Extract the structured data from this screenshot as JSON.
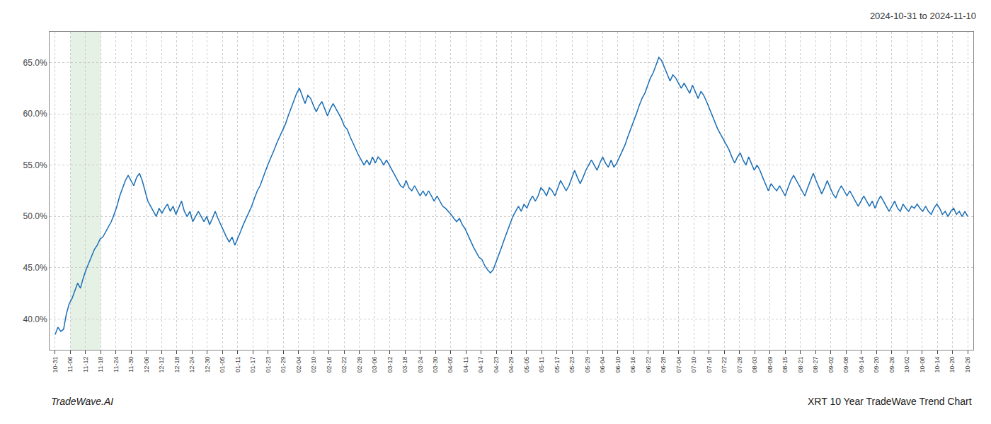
{
  "chart_data": {
    "type": "line",
    "title": "2024-10-31 to 2024-11-10",
    "annotations": [
      "TradeWave.AI",
      "XRT 10 Year TradeWave Trend Chart"
    ],
    "color": "#1a6eb5",
    "grid": true,
    "highlight": {
      "x0": "11-06",
      "x1": "11-18",
      "color": "#d6ead6"
    },
    "ylim": [
      37.0,
      68.0
    ],
    "yticks": [
      {
        "value": 40.0,
        "label": "40.0%"
      },
      {
        "value": 45.0,
        "label": "45.0%"
      },
      {
        "value": 50.0,
        "label": "50.0%"
      },
      {
        "value": 55.0,
        "label": "55.0%"
      },
      {
        "value": 60.0,
        "label": "60.0%"
      },
      {
        "value": 65.0,
        "label": "65.0%"
      }
    ],
    "xlim": [
      -2,
      327
    ],
    "xticks": [
      {
        "value": 0,
        "label": "10-31"
      },
      {
        "value": 5.4167,
        "label": "11-06"
      },
      {
        "value": 10.8333,
        "label": "11-12"
      },
      {
        "value": 16.25,
        "label": "11-18"
      },
      {
        "value": 21.6667,
        "label": "11-24"
      },
      {
        "value": 27.0833,
        "label": "11-30"
      },
      {
        "value": 32.5,
        "label": "12-06"
      },
      {
        "value": 37.9167,
        "label": "12-12"
      },
      {
        "value": 43.3333,
        "label": "12-18"
      },
      {
        "value": 48.75,
        "label": "12-24"
      },
      {
        "value": 54.1667,
        "label": "12-30"
      },
      {
        "value": 59.5833,
        "label": "01-05"
      },
      {
        "value": 65,
        "label": "01-11"
      },
      {
        "value": 70.4167,
        "label": "01-17"
      },
      {
        "value": 75.8333,
        "label": "01-23"
      },
      {
        "value": 81.25,
        "label": "01-29"
      },
      {
        "value": 86.6667,
        "label": "02-04"
      },
      {
        "value": 92.0833,
        "label": "02-10"
      },
      {
        "value": 97.5,
        "label": "02-16"
      },
      {
        "value": 102.9167,
        "label": "02-22"
      },
      {
        "value": 108.3333,
        "label": "02-28"
      },
      {
        "value": 113.75,
        "label": "03-06"
      },
      {
        "value": 119.1667,
        "label": "03-12"
      },
      {
        "value": 124.5833,
        "label": "03-18"
      },
      {
        "value": 130,
        "label": "03-24"
      },
      {
        "value": 135.4167,
        "label": "03-30"
      },
      {
        "value": 140.8333,
        "label": "04-05"
      },
      {
        "value": 146.25,
        "label": "04-11"
      },
      {
        "value": 151.6667,
        "label": "04-17"
      },
      {
        "value": 157.0833,
        "label": "04-23"
      },
      {
        "value": 162.5,
        "label": "04-29"
      },
      {
        "value": 167.9167,
        "label": "05-05"
      },
      {
        "value": 173.3333,
        "label": "05-11"
      },
      {
        "value": 178.75,
        "label": "05-17"
      },
      {
        "value": 184.1667,
        "label": "05-23"
      },
      {
        "value": 189.5833,
        "label": "05-29"
      },
      {
        "value": 195,
        "label": "06-04"
      },
      {
        "value": 200.4167,
        "label": "06-10"
      },
      {
        "value": 205.8333,
        "label": "06-16"
      },
      {
        "value": 211.25,
        "label": "06-22"
      },
      {
        "value": 216.6667,
        "label": "06-28"
      },
      {
        "value": 222.0833,
        "label": "07-04"
      },
      {
        "value": 227.5,
        "label": "07-10"
      },
      {
        "value": 232.9167,
        "label": "07-16"
      },
      {
        "value": 238.3333,
        "label": "07-22"
      },
      {
        "value": 243.75,
        "label": "07-28"
      },
      {
        "value": 249.1667,
        "label": "08-03"
      },
      {
        "value": 254.5833,
        "label": "08-09"
      },
      {
        "value": 260,
        "label": "08-15"
      },
      {
        "value": 265.4167,
        "label": "08-21"
      },
      {
        "value": 270.8333,
        "label": "08-27"
      },
      {
        "value": 276.25,
        "label": "09-02"
      },
      {
        "value": 281.6667,
        "label": "09-08"
      },
      {
        "value": 287.0833,
        "label": "09-14"
      },
      {
        "value": 292.5,
        "label": "09-20"
      },
      {
        "value": 297.9167,
        "label": "09-26"
      },
      {
        "value": 303.3333,
        "label": "10-02"
      },
      {
        "value": 308.75,
        "label": "10-08"
      },
      {
        "value": 314.1667,
        "label": "10-14"
      },
      {
        "value": 319.5833,
        "label": "10-20"
      },
      {
        "value": 325,
        "label": "10-26"
      }
    ],
    "values": [
      38.5,
      39.2,
      38.8,
      39.0,
      40.5,
      41.5,
      42.0,
      42.8,
      43.5,
      43.0,
      44.0,
      44.8,
      45.5,
      46.2,
      46.8,
      47.2,
      47.8,
      48.0,
      48.5,
      49.0,
      49.5,
      50.2,
      51.0,
      52.0,
      52.8,
      53.5,
      54.0,
      53.5,
      53.0,
      53.8,
      54.2,
      53.5,
      52.5,
      51.5,
      51.0,
      50.5,
      50.0,
      50.8,
      50.3,
      50.8,
      51.2,
      50.5,
      51.0,
      50.2,
      50.8,
      51.5,
      50.5,
      50.0,
      50.5,
      49.5,
      50.0,
      50.5,
      50.0,
      49.5,
      50.0,
      49.2,
      49.8,
      50.5,
      49.8,
      49.2,
      48.5,
      48.0,
      47.5,
      48.0,
      47.2,
      47.8,
      48.5,
      49.2,
      49.8,
      50.5,
      51.0,
      51.8,
      52.5,
      53.0,
      53.8,
      54.5,
      55.2,
      55.8,
      56.5,
      57.2,
      57.8,
      58.5,
      59.0,
      59.8,
      60.5,
      61.2,
      62.0,
      62.5,
      61.8,
      61.0,
      61.8,
      61.5,
      60.8,
      60.2,
      60.8,
      61.2,
      60.5,
      59.8,
      60.5,
      61.0,
      60.5,
      60.0,
      59.5,
      58.8,
      58.5,
      57.8,
      57.2,
      56.5,
      56.0,
      55.5,
      55.0,
      55.5,
      55.0,
      55.8,
      55.2,
      55.8,
      55.5,
      55.0,
      55.5,
      55.0,
      54.5,
      54.0,
      53.5,
      53.0,
      52.8,
      53.5,
      52.8,
      52.5,
      53.0,
      52.5,
      52.0,
      52.5,
      52.0,
      52.5,
      52.0,
      51.5,
      52.0,
      51.5,
      51.0,
      50.8,
      50.5,
      50.2,
      49.8,
      49.5,
      49.8,
      49.2,
      48.8,
      48.2,
      47.5,
      47.0,
      46.5,
      46.0,
      45.8,
      45.2,
      44.8,
      44.5,
      44.8,
      45.5,
      46.2,
      47.0,
      47.8,
      48.5,
      49.2,
      50.0,
      50.5,
      51.0,
      50.5,
      51.2,
      50.8,
      51.5,
      52.0,
      51.5,
      52.0,
      52.8,
      52.5,
      52.0,
      52.8,
      52.5,
      52.0,
      52.8,
      53.5,
      53.0,
      52.5,
      53.0,
      53.8,
      54.5,
      53.8,
      53.2,
      53.8,
      54.5,
      55.0,
      55.5,
      55.0,
      54.5,
      55.2,
      55.8,
      55.2,
      54.8,
      55.5,
      54.8,
      55.2,
      55.8,
      56.5,
      57.0,
      57.8,
      58.5,
      59.2,
      60.0,
      60.8,
      61.5,
      62.0,
      62.8,
      63.5,
      64.0,
      64.8,
      65.5,
      65.2,
      64.5,
      63.8,
      63.2,
      63.8,
      63.5,
      63.0,
      62.5,
      63.0,
      62.5,
      62.0,
      62.8,
      62.2,
      61.5,
      62.2,
      61.8,
      61.2,
      60.5,
      59.8,
      59.2,
      58.5,
      58.0,
      57.5,
      57.0,
      56.5,
      55.8,
      55.2,
      55.8,
      56.2,
      55.5,
      55.0,
      55.8,
      55.2,
      54.5,
      55.0,
      54.5,
      53.8,
      53.2,
      52.5,
      53.2,
      52.8,
      52.5,
      53.0,
      52.5,
      52.0,
      52.8,
      53.5,
      54.0,
      53.5,
      53.0,
      52.5,
      52.0,
      52.8,
      53.5,
      54.2,
      53.5,
      52.8,
      52.2,
      52.8,
      53.5,
      52.8,
      52.2,
      51.8,
      52.5,
      53.0,
      52.5,
      52.0,
      52.5,
      52.0,
      51.5,
      51.0,
      51.5,
      52.0,
      51.5,
      51.0,
      51.5,
      50.8,
      51.5,
      52.0,
      51.5,
      51.0,
      50.5,
      51.0,
      51.5,
      50.8,
      50.5,
      51.2,
      50.8,
      50.5,
      51.0,
      50.8,
      51.2,
      50.8,
      50.5,
      51.0,
      50.5,
      50.2,
      50.8,
      51.2,
      50.8,
      50.2,
      50.5,
      50.0,
      50.5,
      50.8,
      50.2,
      50.5,
      50.0,
      50.5,
      50.0
    ]
  }
}
